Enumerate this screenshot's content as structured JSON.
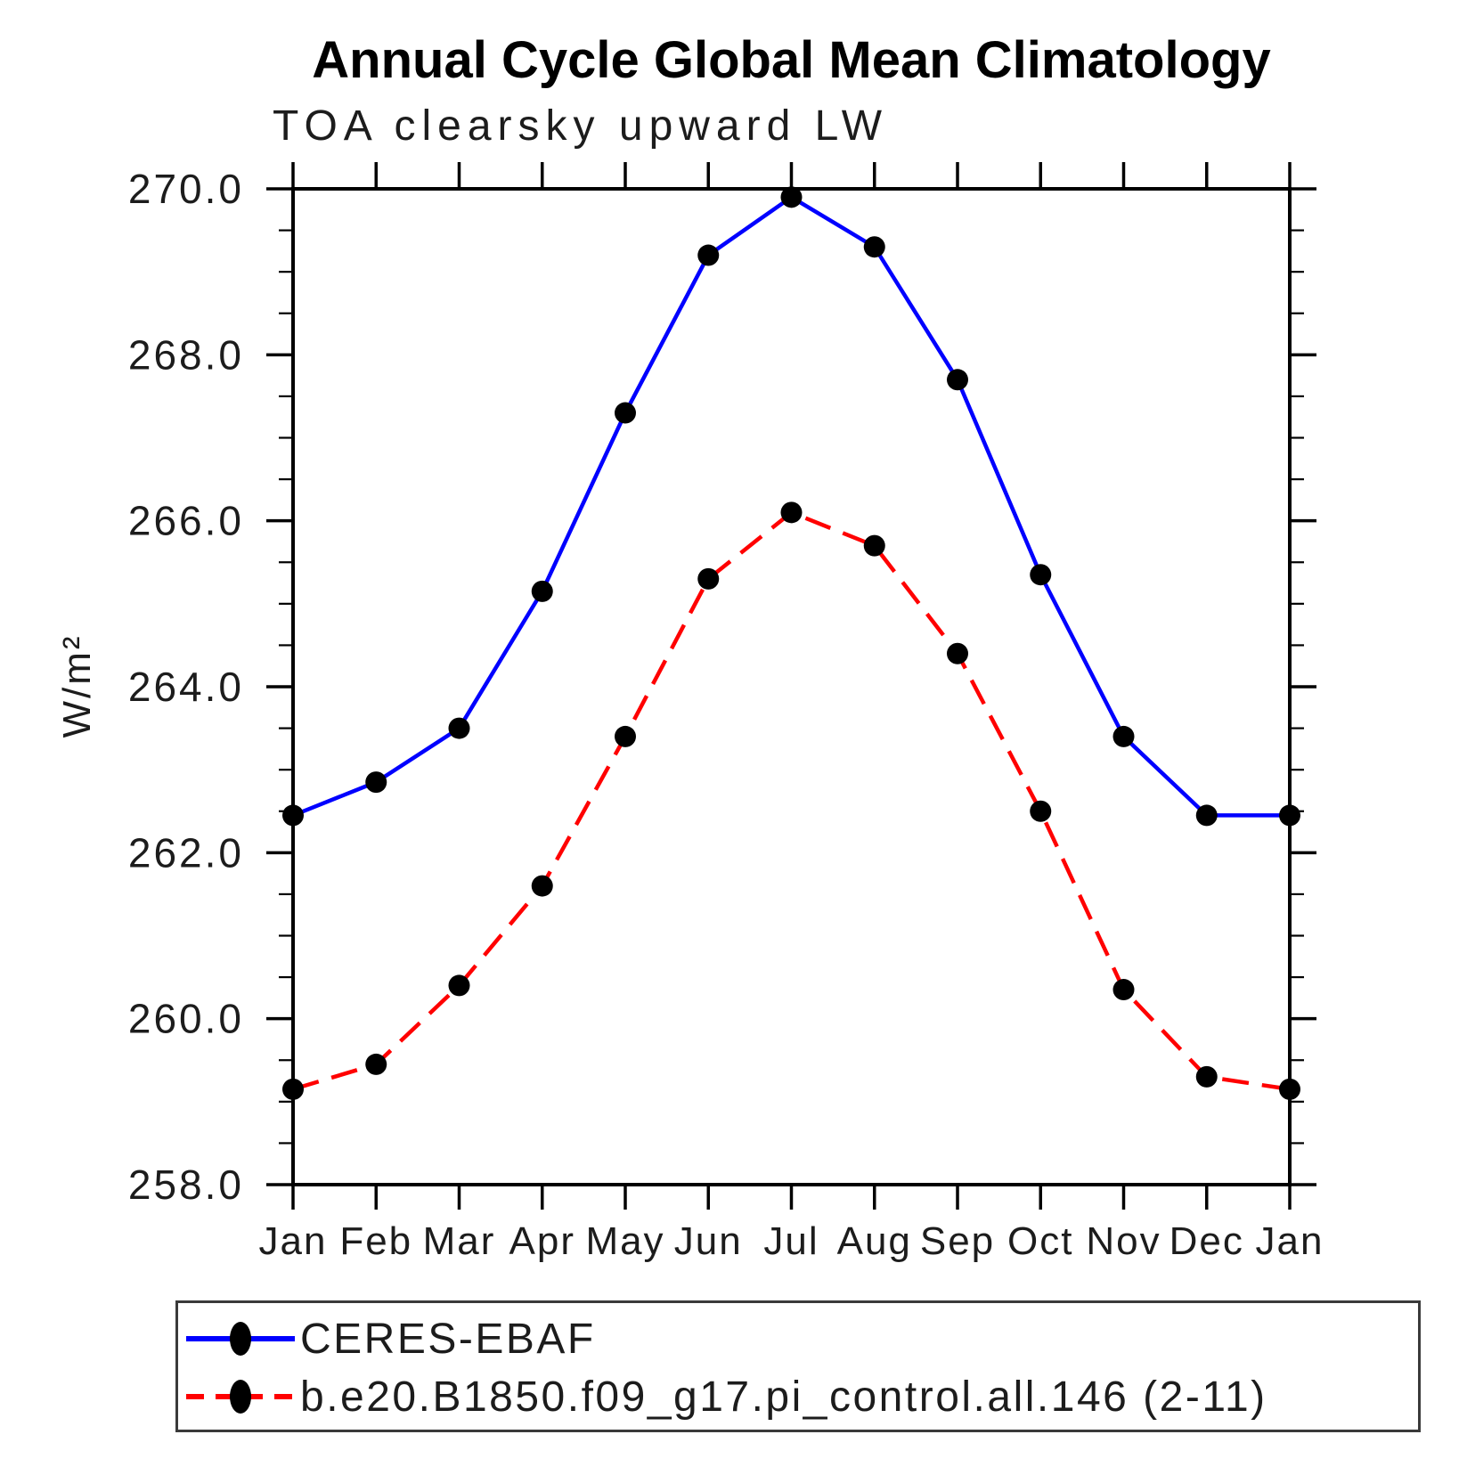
{
  "page": {
    "background_color": "#ffffff",
    "axis_color": "#000000",
    "text_color": "#1c1c1c"
  },
  "chart_data": {
    "type": "line",
    "title": "Annual Cycle Global Mean Climatology",
    "subtitle": "TOA clearsky upward LW",
    "ylabel": "W/m²",
    "xlabel": "",
    "categories": [
      "Jan",
      "Feb",
      "Mar",
      "Apr",
      "May",
      "Jun",
      "Jul",
      "Aug",
      "Sep",
      "Oct",
      "Nov",
      "Dec",
      "Jan"
    ],
    "ylim": [
      258.0,
      270.0
    ],
    "ytick_major_step": 2.0,
    "ytick_minor_step": 0.5,
    "ytick_labels": [
      "258.0",
      "260.0",
      "262.0",
      "264.0",
      "266.0",
      "268.0",
      "270.0"
    ],
    "grid": false,
    "legend_position": "bottom",
    "marker": "filled-circle",
    "marker_color": "#000000",
    "series": [
      {
        "name": "CERES-EBAF",
        "color": "#0000ff",
        "style": "solid",
        "values": [
          262.45,
          262.85,
          263.5,
          265.15,
          267.3,
          269.2,
          269.9,
          269.3,
          267.7,
          265.35,
          263.4,
          262.45,
          262.45
        ]
      },
      {
        "name": "b.e20.B1850.f09_g17.pi_control.all.146 (2-11)",
        "color": "#ff0000",
        "style": "dashed",
        "values": [
          259.15,
          259.45,
          260.4,
          261.6,
          263.4,
          265.3,
          266.1,
          265.7,
          264.4,
          262.5,
          260.35,
          259.3,
          259.15
        ]
      }
    ]
  }
}
